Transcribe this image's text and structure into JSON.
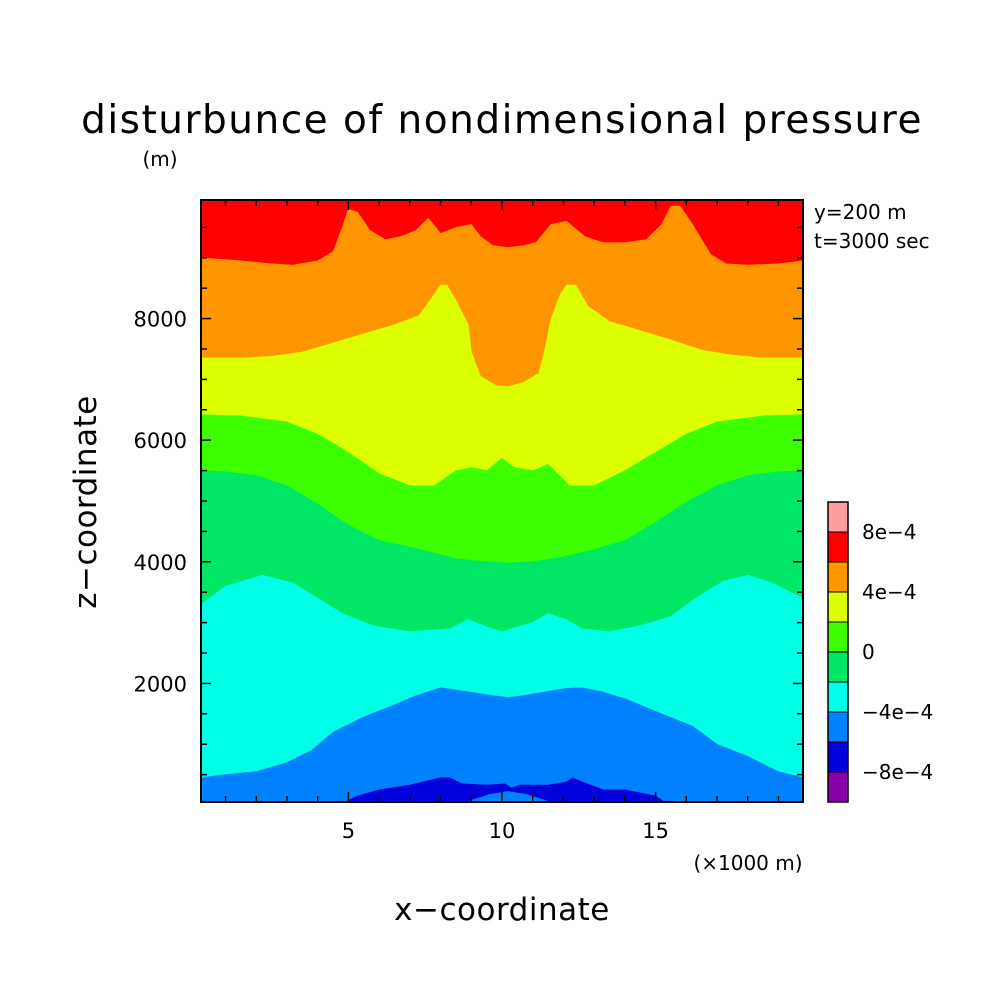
{
  "chart_data": {
    "type": "heatmap",
    "subtype": "filled-contour",
    "title": "disturbunce of nondimensional pressure",
    "xlabel": "x−coordinate",
    "ylabel": "z−coordinate",
    "x_unit": "(×1000 m)",
    "y_unit": "(m)",
    "xlim": [
      0.2,
      19.8
    ],
    "ylim": [
      50,
      9950
    ],
    "x_ticks": [
      5,
      10,
      15
    ],
    "x_tick_labels": [
      "5",
      "10",
      "15"
    ],
    "y_ticks": [
      2000,
      4000,
      6000,
      8000
    ],
    "y_tick_labels": [
      "2000",
      "4000",
      "6000",
      "8000"
    ],
    "info": [
      "y=200 m",
      "t=3000 sec"
    ],
    "colorbar": {
      "levels": [
        -0.001,
        -0.0008,
        -0.0006,
        -0.0004,
        -0.0002,
        0,
        0.0002,
        0.0004,
        0.0006,
        0.0008,
        0.001
      ],
      "colors": [
        "#8a00a8",
        "#0000dc",
        "#0082ff",
        "#00ffe6",
        "#00e665",
        "#3cff00",
        "#dcff00",
        "#ff9600",
        "#ff0000",
        "#ff9c9c"
      ],
      "labels": [
        {
          "value": -0.0008,
          "text": "−8e−4"
        },
        {
          "value": -0.0004,
          "text": "−4e−4"
        },
        {
          "value": 0,
          "text": "0"
        },
        {
          "value": 0.0004,
          "text": "4e−4"
        },
        {
          "value": 0.0008,
          "text": "8e−4"
        }
      ]
    },
    "contour_boundaries": [
      {
        "level": -0.0006,
        "fill": "#0000dc",
        "points": [
          [
            4.9,
            50
          ],
          [
            5.3,
            150
          ],
          [
            6.0,
            250
          ],
          [
            7.0,
            330
          ],
          [
            8.0,
            450
          ],
          [
            8.3,
            450
          ],
          [
            8.7,
            350
          ],
          [
            9.5,
            330
          ],
          [
            10.1,
            350
          ],
          [
            10.3,
            280
          ],
          [
            10.6,
            330
          ],
          [
            11.5,
            330
          ],
          [
            12.1,
            380
          ],
          [
            12.3,
            450
          ],
          [
            12.6,
            380
          ],
          [
            13.3,
            250
          ],
          [
            14.0,
            250
          ],
          [
            15.0,
            150
          ],
          [
            15.3,
            50
          ]
        ]
      },
      {
        "level": -0.0004,
        "fill": "#0082ff",
        "points": [
          [
            0.2,
            450
          ],
          [
            1.0,
            500
          ],
          [
            2.0,
            550
          ],
          [
            3.0,
            700
          ],
          [
            3.8,
            900
          ],
          [
            4.5,
            1200
          ],
          [
            5.5,
            1450
          ],
          [
            6.5,
            1650
          ],
          [
            7.2,
            1800
          ],
          [
            8.0,
            1930
          ],
          [
            8.8,
            1870
          ],
          [
            9.7,
            1800
          ],
          [
            10.2,
            1770
          ],
          [
            10.7,
            1800
          ],
          [
            11.5,
            1870
          ],
          [
            12.1,
            1920
          ],
          [
            12.6,
            1930
          ],
          [
            13.2,
            1870
          ],
          [
            14.0,
            1750
          ],
          [
            15.2,
            1500
          ],
          [
            16.2,
            1300
          ],
          [
            17.0,
            1000
          ],
          [
            18.0,
            800
          ],
          [
            19.0,
            550
          ],
          [
            19.8,
            450
          ]
        ]
      },
      {
        "level": -0.0002,
        "fill": "#00ffe6",
        "points": [
          [
            0.2,
            3300
          ],
          [
            1.0,
            3600
          ],
          [
            2.2,
            3780
          ],
          [
            3.2,
            3650
          ],
          [
            4.0,
            3400
          ],
          [
            4.8,
            3150
          ],
          [
            5.8,
            2950
          ],
          [
            7.0,
            2850
          ],
          [
            8.3,
            2900
          ],
          [
            8.9,
            3050
          ],
          [
            9.5,
            2930
          ],
          [
            10.0,
            2850
          ],
          [
            10.5,
            2930
          ],
          [
            11.0,
            3000
          ],
          [
            11.5,
            3150
          ],
          [
            12.1,
            3050
          ],
          [
            12.6,
            2900
          ],
          [
            13.5,
            2850
          ],
          [
            14.5,
            2950
          ],
          [
            15.5,
            3100
          ],
          [
            16.3,
            3400
          ],
          [
            17.2,
            3680
          ],
          [
            18.0,
            3780
          ],
          [
            18.8,
            3650
          ],
          [
            19.8,
            3400
          ]
        ]
      },
      {
        "level": 0,
        "fill": "#00e665",
        "points": [
          [
            0.2,
            5500
          ],
          [
            1.0,
            5480
          ],
          [
            2.0,
            5420
          ],
          [
            3.0,
            5250
          ],
          [
            4.0,
            4950
          ],
          [
            5.0,
            4600
          ],
          [
            6.0,
            4350
          ],
          [
            7.2,
            4220
          ],
          [
            8.5,
            4050
          ],
          [
            9.5,
            4000
          ],
          [
            10.2,
            3980
          ],
          [
            11.0,
            4000
          ],
          [
            12.0,
            4080
          ],
          [
            13.0,
            4200
          ],
          [
            14.0,
            4350
          ],
          [
            15.0,
            4650
          ],
          [
            16.0,
            4980
          ],
          [
            17.0,
            5250
          ],
          [
            18.0,
            5420
          ],
          [
            19.0,
            5480
          ],
          [
            19.8,
            5500
          ]
        ]
      },
      {
        "level": 0.0002,
        "fill": "#3cff00",
        "points": [
          [
            0.2,
            6420
          ],
          [
            1.5,
            6400
          ],
          [
            3.0,
            6300
          ],
          [
            4.0,
            6100
          ],
          [
            5.0,
            5800
          ],
          [
            6.0,
            5450
          ],
          [
            7.0,
            5250
          ],
          [
            7.8,
            5250
          ],
          [
            8.5,
            5500
          ],
          [
            9.0,
            5550
          ],
          [
            9.5,
            5500
          ],
          [
            10.0,
            5700
          ],
          [
            10.4,
            5550
          ],
          [
            11.0,
            5500
          ],
          [
            11.5,
            5600
          ],
          [
            12.2,
            5250
          ],
          [
            13.0,
            5250
          ],
          [
            14.0,
            5500
          ],
          [
            15.0,
            5800
          ],
          [
            16.0,
            6100
          ],
          [
            17.0,
            6300
          ],
          [
            18.5,
            6400
          ],
          [
            19.8,
            6420
          ]
        ]
      },
      {
        "level": 0.0004,
        "fill": "#dcff00",
        "points": [
          [
            0.2,
            7350
          ],
          [
            1.5,
            7350
          ],
          [
            2.5,
            7380
          ],
          [
            3.5,
            7450
          ],
          [
            4.5,
            7600
          ],
          [
            5.5,
            7750
          ],
          [
            6.5,
            7900
          ],
          [
            7.3,
            8050
          ],
          [
            7.8,
            8400
          ],
          [
            8.0,
            8550
          ],
          [
            8.2,
            8550
          ],
          [
            8.5,
            8300
          ],
          [
            8.9,
            7900
          ],
          [
            9.0,
            7450
          ],
          [
            9.3,
            7050
          ],
          [
            9.8,
            6900
          ],
          [
            10.2,
            6880
          ],
          [
            10.7,
            6950
          ],
          [
            11.2,
            7100
          ],
          [
            11.4,
            7500
          ],
          [
            11.6,
            8000
          ],
          [
            11.9,
            8400
          ],
          [
            12.1,
            8550
          ],
          [
            12.4,
            8550
          ],
          [
            12.8,
            8200
          ],
          [
            13.5,
            7950
          ],
          [
            14.5,
            7800
          ],
          [
            15.5,
            7650
          ],
          [
            16.5,
            7480
          ],
          [
            17.5,
            7400
          ],
          [
            18.5,
            7350
          ],
          [
            19.8,
            7350
          ]
        ]
      },
      {
        "level": 0.0006,
        "fill": "#ff9600",
        "points": [
          [
            0.2,
            9000
          ],
          [
            1.5,
            8950
          ],
          [
            2.5,
            8900
          ],
          [
            3.2,
            8880
          ],
          [
            4.0,
            8950
          ],
          [
            4.5,
            9100
          ],
          [
            4.8,
            9500
          ],
          [
            5.0,
            9800
          ],
          [
            5.3,
            9750
          ],
          [
            5.7,
            9450
          ],
          [
            6.2,
            9300
          ],
          [
            6.7,
            9350
          ],
          [
            7.2,
            9450
          ],
          [
            7.6,
            9650
          ],
          [
            8.0,
            9400
          ],
          [
            8.5,
            9500
          ],
          [
            9.0,
            9550
          ],
          [
            9.3,
            9350
          ],
          [
            9.7,
            9200
          ],
          [
            10.2,
            9170
          ],
          [
            10.7,
            9200
          ],
          [
            11.1,
            9250
          ],
          [
            11.6,
            9550
          ],
          [
            12.1,
            9600
          ],
          [
            12.7,
            9350
          ],
          [
            13.3,
            9250
          ],
          [
            14.0,
            9250
          ],
          [
            14.7,
            9300
          ],
          [
            15.2,
            9550
          ],
          [
            15.5,
            9850
          ],
          [
            15.8,
            9850
          ],
          [
            16.2,
            9550
          ],
          [
            16.8,
            9050
          ],
          [
            17.3,
            8900
          ],
          [
            18.0,
            8880
          ],
          [
            19.0,
            8900
          ],
          [
            19.8,
            8950
          ]
        ]
      }
    ]
  }
}
